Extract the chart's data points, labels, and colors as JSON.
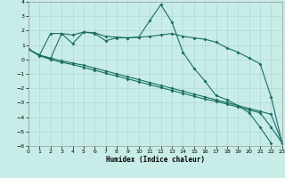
{
  "xlabel": "Humidex (Indice chaleur)",
  "xlim": [
    0,
    23
  ],
  "ylim": [
    -6,
    4
  ],
  "xticks": [
    0,
    1,
    2,
    3,
    4,
    5,
    6,
    7,
    8,
    9,
    10,
    11,
    12,
    13,
    14,
    15,
    16,
    17,
    18,
    19,
    20,
    21,
    22,
    23
  ],
  "yticks": [
    -6,
    -5,
    -4,
    -3,
    -2,
    -1,
    0,
    1,
    2,
    3,
    4
  ],
  "bg_color": "#c8ece8",
  "grid_color": "#b0d8d0",
  "line_color": "#1a6e62",
  "line1_x": [
    0,
    1,
    2,
    3,
    4,
    5,
    6,
    7,
    8,
    9,
    10,
    11,
    12,
    13,
    14,
    15,
    16,
    17,
    18,
    19,
    20,
    21,
    22,
    23
  ],
  "line1_y": [
    0.7,
    0.3,
    0.1,
    -0.1,
    -0.25,
    -0.4,
    -0.6,
    -0.8,
    -1.0,
    -1.2,
    -1.4,
    -1.6,
    -1.8,
    -2.0,
    -2.2,
    -2.4,
    -2.6,
    -2.8,
    -3.0,
    -3.2,
    -3.4,
    -3.6,
    -3.8,
    -5.8
  ],
  "line2_x": [
    0,
    1,
    2,
    3,
    4,
    5,
    6,
    7,
    8,
    9,
    10,
    11,
    12,
    13,
    14,
    15,
    16,
    17,
    18,
    19,
    20,
    21,
    22,
    23
  ],
  "line2_y": [
    0.7,
    0.25,
    0.0,
    -0.2,
    -0.35,
    -0.55,
    -0.75,
    -0.95,
    -1.15,
    -1.35,
    -1.55,
    -1.75,
    -1.95,
    -2.15,
    -2.35,
    -2.55,
    -2.75,
    -2.9,
    -3.1,
    -3.3,
    -3.5,
    -3.7,
    -4.7,
    -5.8
  ],
  "line3_x": [
    0,
    1,
    2,
    3,
    4,
    5,
    6,
    7,
    8,
    9,
    10,
    11,
    12,
    13,
    14,
    15,
    16,
    17,
    18,
    19,
    20,
    21,
    22,
    23
  ],
  "line3_y": [
    0.7,
    0.3,
    1.8,
    1.8,
    1.7,
    1.9,
    1.85,
    1.6,
    1.55,
    1.5,
    1.55,
    1.6,
    1.7,
    1.8,
    1.6,
    1.5,
    1.4,
    1.2,
    0.8,
    0.5,
    0.1,
    -0.3,
    -2.6,
    -5.8
  ],
  "line4_x": [
    0,
    1,
    2,
    3,
    4,
    5,
    6,
    7,
    8,
    9,
    10,
    11,
    12,
    13,
    14,
    15,
    16,
    17,
    18,
    19,
    20,
    21,
    22,
    23
  ],
  "line4_y": [
    0.7,
    0.3,
    0.05,
    1.8,
    1.1,
    1.9,
    1.8,
    1.3,
    1.5,
    1.5,
    1.55,
    2.7,
    3.8,
    2.6,
    0.5,
    -0.6,
    -1.5,
    -2.5,
    -2.8,
    -3.2,
    -3.7,
    -4.7,
    -5.8,
    -5.8
  ]
}
